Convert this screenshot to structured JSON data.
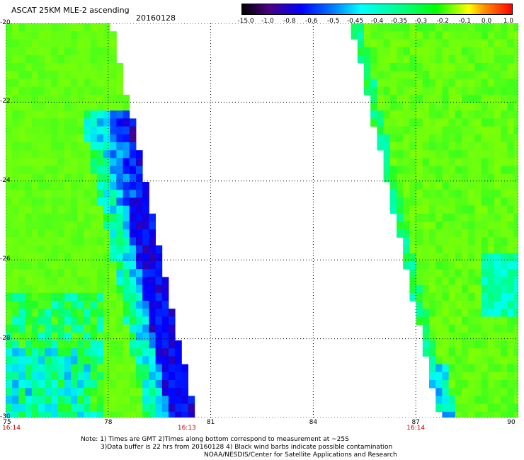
{
  "header": {
    "title": "ASCAT 25KM MLE-2 ascending",
    "date": "20160128"
  },
  "colorbar": {
    "labels": [
      "-15.0",
      "-1.0",
      "-0.8",
      "-0.6",
      "-0.5",
      "-0.45",
      "-0.4",
      "-0.35",
      "-0.3",
      "-0.2",
      "-0.1",
      "0.0",
      "1.0"
    ],
    "colors": [
      "#000000",
      "#4b0082",
      "#0000ff",
      "#007fff",
      "#00ffff",
      "#00ffbf",
      "#00ff7f",
      "#00ff00",
      "#aaff00",
      "#ffff00",
      "#ff8c00",
      "#ff0000"
    ]
  },
  "map": {
    "lon_min": 75,
    "lon_max": 90,
    "lat_min": -30,
    "lat_max": -20,
    "x_ticks": [
      "75",
      "78",
      "81",
      "84",
      "87",
      "90"
    ],
    "y_ticks": [
      "-20",
      "-22",
      "-24",
      "-26",
      "-28",
      "-30"
    ],
    "times": [
      {
        "lon": 75,
        "label": "16:14"
      },
      {
        "lon": 80.3,
        "label": "16:13"
      },
      {
        "lon": 87,
        "label": "16:14"
      }
    ]
  },
  "notes": {
    "line1": "Note: 1) Times are GMT 2)Times along bottom correspond to measurement at ~25S",
    "line2": "3)Data buffer is 22 hrs from 20160128 4) Black wind barbs indicate possible contamination",
    "line3": "NOAA/NESDIS/Center for Satellite Applications and Research"
  }
}
